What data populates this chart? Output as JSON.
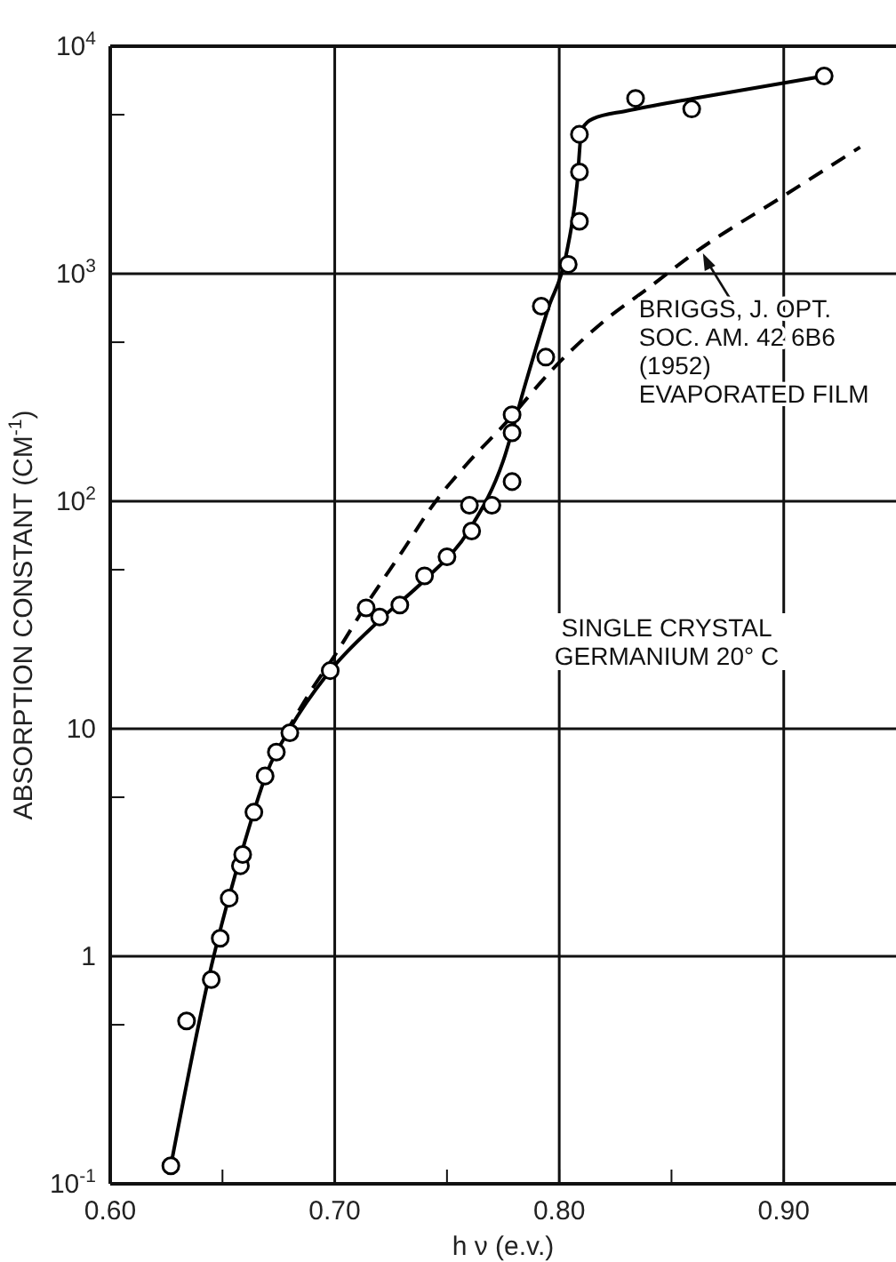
{
  "chart_data": {
    "type": "scatter",
    "xlabel": "h ν (e.v.)",
    "ylabel": "ABSORPTION CONSTANT (CM$^{-1}$)",
    "log": "y",
    "grid": true,
    "xlim": [
      0.6,
      0.95
    ],
    "xticks": [
      {
        "value": 0.6,
        "label": "0.60"
      },
      {
        "value": 0.65,
        "label": null
      },
      {
        "value": 0.7,
        "label": "0.70"
      },
      {
        "value": 0.75,
        "label": null
      },
      {
        "value": 0.8,
        "label": "0.80"
      },
      {
        "value": 0.85,
        "label": null
      },
      {
        "value": 0.9,
        "label": "0.90"
      }
    ],
    "ylim": [
      0.1,
      10000
    ],
    "yticks": [
      {
        "value": 0.1,
        "label": "10$^{-1}$"
      },
      {
        "value": 0.5,
        "label": null
      },
      1,
      {
        "value": 5,
        "label": null
      },
      10,
      {
        "value": 50,
        "label": null
      },
      {
        "value": 100,
        "label": "10$^{2}$"
      },
      {
        "value": 500,
        "label": null
      },
      {
        "value": 1000,
        "label": "10$^{3}$"
      },
      {
        "value": 5000,
        "label": null
      },
      {
        "value": 10000,
        "label": "10$^{4}$"
      }
    ],
    "series": [
      {
        "marker": "circle",
        "color": "#000000",
        "x": [
          0.627,
          0.634,
          0.645,
          0.649,
          0.653,
          0.658,
          0.659,
          0.664,
          0.669,
          0.674,
          0.68,
          0.698,
          0.714,
          0.72,
          0.729,
          0.74,
          0.75,
          0.76,
          0.761,
          0.77,
          0.779,
          0.779,
          0.779,
          0.792,
          0.794,
          0.804,
          0.809,
          0.809,
          0.809,
          0.834,
          0.859,
          0.918
        ],
        "values": [
          0.12,
          0.52,
          0.79,
          1.2,
          1.8,
          2.5,
          2.8,
          4.3,
          6.2,
          7.9,
          9.6,
          18,
          34,
          31,
          35,
          47,
          57,
          96,
          74,
          96,
          122,
          200,
          240,
          720,
          430,
          1100,
          1700,
          2800,
          4100,
          5900,
          5300,
          7400
        ]
      },
      {
        "type": "line",
        "marker": "none",
        "line_style": "solid",
        "color": "#000000",
        "x": [
          0.627,
          0.645,
          0.66,
          0.67,
          0.68,
          0.698,
          0.72,
          0.74,
          0.76,
          0.775,
          0.785,
          0.795,
          0.803,
          0.808,
          0.81,
          0.815,
          0.83,
          0.86,
          0.918
        ],
        "values": [
          0.12,
          0.9,
          3.2,
          6.5,
          10,
          18,
          30,
          45,
          75,
          150,
          330,
          700,
          1200,
          2500,
          4300,
          4800,
          5200,
          5900,
          7400
        ]
      },
      {
        "type": "line",
        "marker": "none",
        "line_style": "dashed",
        "color": "#000000",
        "x": [
          0.678,
          0.69,
          0.7,
          0.714,
          0.73,
          0.745,
          0.76,
          0.776,
          0.797,
          0.82,
          0.84,
          0.86,
          0.9,
          0.934
        ],
        "values": [
          9.5,
          15,
          21,
          35,
          60,
          100,
          150,
          220,
          380,
          620,
          870,
          1230,
          2200,
          3600
        ]
      }
    ],
    "annotations": [
      {
        "text": "BRIGGS, J. OPT. SOC. AM. 42 6B6 (1952) EVAPORATED FILM",
        "x": 0.864,
        "y": 1230
      },
      "SINGLE CRYSTAL GERMANIUM 20° C"
    ]
  }
}
